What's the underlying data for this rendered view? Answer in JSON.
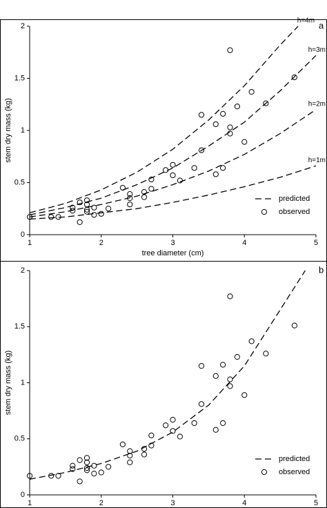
{
  "chart_data": [
    {
      "type": "scatter",
      "panel_label": "a",
      "xlabel": "tree diameter (cm)",
      "ylabel": "stem dry mass (kg)",
      "xlim": [
        1,
        5
      ],
      "ylim": [
        0,
        2
      ],
      "xticks": [
        1,
        2,
        3,
        4,
        5
      ],
      "yticks": [
        0,
        0.5,
        1,
        1.5,
        2
      ],
      "grid": false,
      "legend": "lower right",
      "series": [
        {
          "name": "predicted",
          "color": "#000000",
          "style": "dashed",
          "lines": [
            {
              "label": "h=4m",
              "x": [
                1,
                1.5,
                2,
                2.5,
                3,
                3.5,
                4,
                4.5,
                4.75
              ],
              "values": [
                0.21,
                0.3,
                0.43,
                0.6,
                0.82,
                1.1,
                1.43,
                1.82,
                2.0
              ]
            },
            {
              "label": "h=3m",
              "x": [
                1,
                1.5,
                2,
                2.5,
                3,
                3.5,
                4,
                4.5,
                5
              ],
              "values": [
                0.19,
                0.26,
                0.35,
                0.48,
                0.64,
                0.85,
                1.08,
                1.38,
                1.72
              ]
            },
            {
              "label": "h=2m",
              "x": [
                1,
                1.5,
                2,
                2.5,
                3,
                3.5,
                4,
                4.5,
                5
              ],
              "values": [
                0.17,
                0.22,
                0.29,
                0.37,
                0.48,
                0.61,
                0.77,
                0.97,
                1.2
              ]
            },
            {
              "label": "h=1m",
              "x": [
                1,
                1.5,
                2,
                2.5,
                3,
                3.5,
                4,
                4.5,
                5
              ],
              "values": [
                0.15,
                0.17,
                0.21,
                0.25,
                0.31,
                0.38,
                0.46,
                0.55,
                0.66
              ]
            }
          ]
        },
        {
          "name": "observed",
          "color": "#000000",
          "marker": "circle",
          "x": [
            1.0,
            1.3,
            1.4,
            1.6,
            1.6,
            1.7,
            1.7,
            1.8,
            1.8,
            1.8,
            1.8,
            1.9,
            1.9,
            2.0,
            2.1,
            2.3,
            2.4,
            2.4,
            2.4,
            2.6,
            2.6,
            2.7,
            2.7,
            2.9,
            3.0,
            3.0,
            3.1,
            3.3,
            3.4,
            3.4,
            3.6,
            3.6,
            3.7,
            3.7,
            3.8,
            3.8,
            3.8,
            3.9,
            4.0,
            4.1,
            4.3,
            4.7
          ],
          "values": [
            0.17,
            0.17,
            0.17,
            0.26,
            0.23,
            0.31,
            0.12,
            0.33,
            0.29,
            0.24,
            0.22,
            0.26,
            0.19,
            0.2,
            0.25,
            0.45,
            0.39,
            0.35,
            0.29,
            0.41,
            0.36,
            0.53,
            0.44,
            0.62,
            0.67,
            0.57,
            0.52,
            0.64,
            1.15,
            0.81,
            1.06,
            0.58,
            1.16,
            0.64,
            1.77,
            1.03,
            0.97,
            1.23,
            0.89,
            1.37,
            1.26,
            1.51
          ]
        }
      ]
    },
    {
      "type": "scatter",
      "panel_label": "b",
      "xlabel": "tree diameter (cm)",
      "ylabel": "stem dry mass (kg)",
      "xlim": [
        1,
        5
      ],
      "ylim": [
        0,
        2
      ],
      "xticks": [
        1,
        2,
        3,
        4,
        5
      ],
      "yticks": [
        0,
        0.5,
        1,
        1.5,
        2
      ],
      "grid": false,
      "legend": "lower right",
      "series": [
        {
          "name": "predicted",
          "color": "#000000",
          "style": "dashed",
          "lines": [
            {
              "x": [
                1,
                1.5,
                2,
                2.5,
                3,
                3.5,
                4,
                4.5,
                4.85
              ],
              "values": [
                0.14,
                0.2,
                0.28,
                0.39,
                0.56,
                0.8,
                1.15,
                1.65,
                2.0
              ]
            }
          ]
        },
        {
          "name": "observed",
          "color": "#000000",
          "marker": "circle",
          "x": [
            1.0,
            1.3,
            1.4,
            1.6,
            1.6,
            1.7,
            1.7,
            1.8,
            1.8,
            1.8,
            1.8,
            1.9,
            1.9,
            2.0,
            2.1,
            2.3,
            2.4,
            2.4,
            2.4,
            2.6,
            2.6,
            2.7,
            2.7,
            2.9,
            3.0,
            3.0,
            3.1,
            3.3,
            3.4,
            3.4,
            3.6,
            3.6,
            3.7,
            3.7,
            3.8,
            3.8,
            3.8,
            3.9,
            4.0,
            4.1,
            4.3,
            4.7
          ],
          "values": [
            0.17,
            0.17,
            0.17,
            0.26,
            0.23,
            0.31,
            0.12,
            0.33,
            0.29,
            0.24,
            0.22,
            0.26,
            0.19,
            0.2,
            0.25,
            0.45,
            0.39,
            0.35,
            0.29,
            0.41,
            0.36,
            0.53,
            0.44,
            0.62,
            0.67,
            0.57,
            0.52,
            0.64,
            1.15,
            0.81,
            1.06,
            0.58,
            1.16,
            0.64,
            1.77,
            1.03,
            0.97,
            1.23,
            0.89,
            1.37,
            1.26,
            1.51
          ]
        }
      ]
    }
  ]
}
